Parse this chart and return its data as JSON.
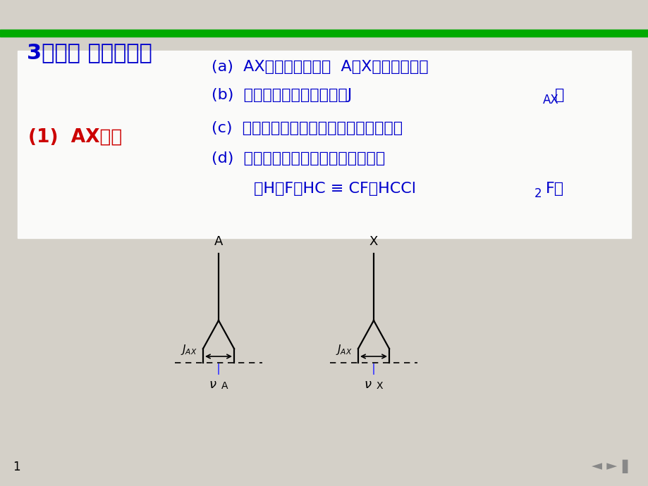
{
  "bg_color": "#d4d0c8",
  "title_bar_color": "#00aa00",
  "title_text": "3、常见 的自旋系统",
  "title_color": "#0000cc",
  "title_fontsize": 22,
  "section_label": "(1)  AX系统",
  "section_label_color": "#cc0000",
  "section_label_fontsize": 19,
  "text_color": "#0000cc",
  "text_fontsize": 16,
  "line_a": "(a)  AX系统有四条线，  A、X各为两重峰；",
  "line_b_main": "(b)  两峰之间裂距为偶合常数J",
  "line_b_sub": "AX",
  "line_b_end": "；",
  "line_c": "(c)  各组双重峰的中点为该核的化学位移；",
  "line_d": "(d)  四条谱线高度相等，峰形无畚变。",
  "line_ex_main": "（H－F、HC ≡ CF、HCCl",
  "line_ex_sub": "2",
  "line_ex_end": "F）",
  "page_number": "1"
}
